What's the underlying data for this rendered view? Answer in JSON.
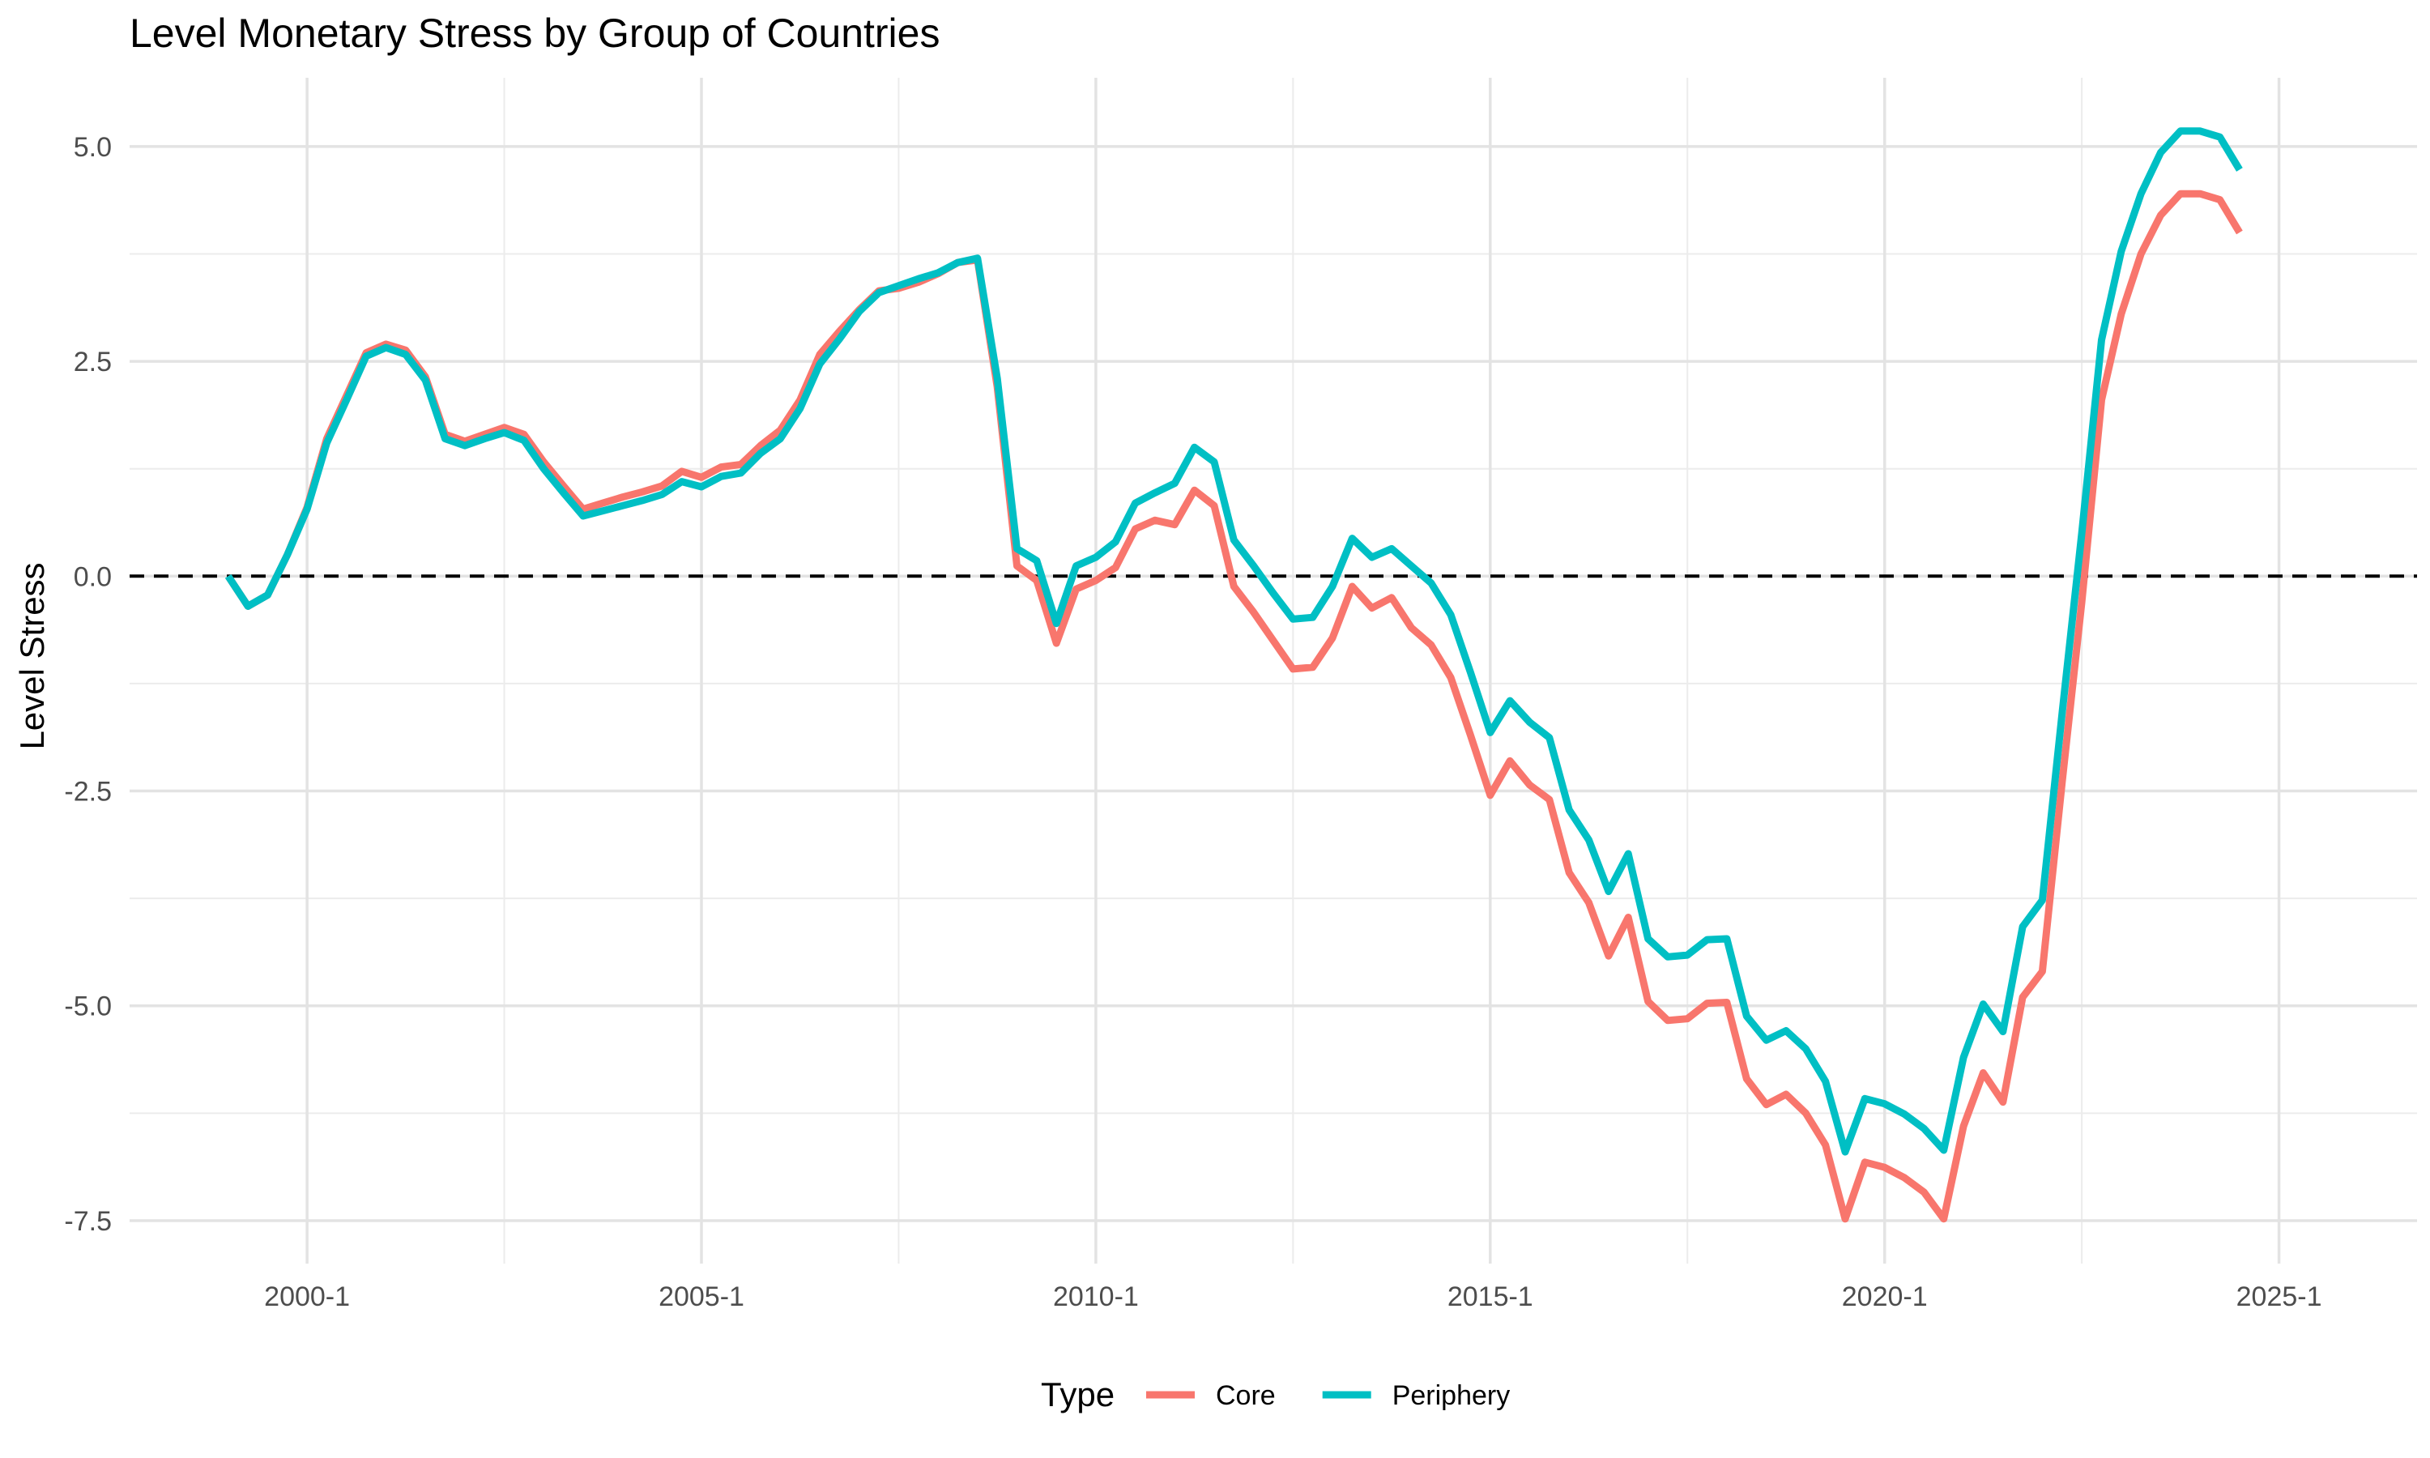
{
  "chart_data": {
    "type": "line",
    "title": "Level Monetary Stress by Group of Countries",
    "xlabel": "",
    "ylabel": "Level Stress",
    "xlim": [
      1997.75,
      2026.75
    ],
    "ylim": [
      -8.0,
      5.8
    ],
    "x_ticks": [
      {
        "value": 2000,
        "label": "2000-1"
      },
      {
        "value": 2005,
        "label": "2005-1"
      },
      {
        "value": 2010,
        "label": "2010-1"
      },
      {
        "value": 2015,
        "label": "2015-1"
      },
      {
        "value": 2020,
        "label": "2020-1"
      },
      {
        "value": 2025,
        "label": "2025-1"
      }
    ],
    "x_minor_ticks": [
      2002.5,
      2007.5,
      2012.5,
      2017.5,
      2022.5
    ],
    "y_ticks": [
      {
        "value": 5.0,
        "label": "5.0"
      },
      {
        "value": 2.5,
        "label": "2.5"
      },
      {
        "value": 0.0,
        "label": "0.0"
      },
      {
        "value": -2.5,
        "label": "-2.5"
      },
      {
        "value": -5.0,
        "label": "-5.0"
      },
      {
        "value": -7.5,
        "label": "-7.5"
      }
    ],
    "y_minor_ticks": [
      3.75,
      1.25,
      -1.25,
      -3.75,
      -6.25
    ],
    "reference_line": {
      "y": 0,
      "style": "dashed"
    },
    "grid": true,
    "legend": {
      "title": "Type",
      "position": "bottom"
    },
    "series": [
      {
        "name": "Core",
        "color": "#F8766D",
        "points": [
          [
            1999.0,
            0.0
          ],
          [
            1999.25,
            -0.35
          ],
          [
            1999.5,
            -0.22
          ],
          [
            1999.75,
            0.25
          ],
          [
            2000.0,
            0.8
          ],
          [
            2000.25,
            1.6
          ],
          [
            2000.5,
            2.1
          ],
          [
            2000.75,
            2.6
          ],
          [
            2001.0,
            2.7
          ],
          [
            2001.25,
            2.63
          ],
          [
            2001.5,
            2.32
          ],
          [
            2001.75,
            1.65
          ],
          [
            2002.0,
            1.57
          ],
          [
            2002.25,
            1.65
          ],
          [
            2002.5,
            1.73
          ],
          [
            2002.75,
            1.65
          ],
          [
            2003.0,
            1.33
          ],
          [
            2003.25,
            1.05
          ],
          [
            2003.5,
            0.78
          ],
          [
            2003.75,
            0.85
          ],
          [
            2004.0,
            0.92
          ],
          [
            2004.25,
            0.98
          ],
          [
            2004.5,
            1.05
          ],
          [
            2004.75,
            1.22
          ],
          [
            2005.0,
            1.15
          ],
          [
            2005.25,
            1.27
          ],
          [
            2005.5,
            1.3
          ],
          [
            2005.75,
            1.52
          ],
          [
            2006.0,
            1.7
          ],
          [
            2006.25,
            2.05
          ],
          [
            2006.5,
            2.58
          ],
          [
            2006.75,
            2.85
          ],
          [
            2007.0,
            3.1
          ],
          [
            2007.25,
            3.32
          ],
          [
            2007.5,
            3.35
          ],
          [
            2007.75,
            3.42
          ],
          [
            2008.0,
            3.52
          ],
          [
            2008.25,
            3.65
          ],
          [
            2008.5,
            3.68
          ],
          [
            2008.75,
            2.2
          ],
          [
            2009.0,
            0.12
          ],
          [
            2009.25,
            -0.05
          ],
          [
            2009.5,
            -0.78
          ],
          [
            2009.75,
            -0.15
          ],
          [
            2010.0,
            -0.05
          ],
          [
            2010.25,
            0.1
          ],
          [
            2010.5,
            0.55
          ],
          [
            2010.75,
            0.65
          ],
          [
            2011.0,
            0.6
          ],
          [
            2011.25,
            1.0
          ],
          [
            2011.5,
            0.82
          ],
          [
            2011.75,
            -0.12
          ],
          [
            2012.0,
            -0.42
          ],
          [
            2012.25,
            -0.75
          ],
          [
            2012.5,
            -1.08
          ],
          [
            2012.75,
            -1.06
          ],
          [
            2013.0,
            -0.72
          ],
          [
            2013.25,
            -0.12
          ],
          [
            2013.5,
            -0.37
          ],
          [
            2013.75,
            -0.25
          ],
          [
            2014.0,
            -0.6
          ],
          [
            2014.25,
            -0.8
          ],
          [
            2014.5,
            -1.18
          ],
          [
            2014.75,
            -1.85
          ],
          [
            2015.0,
            -2.55
          ],
          [
            2015.25,
            -2.15
          ],
          [
            2015.5,
            -2.43
          ],
          [
            2015.75,
            -2.6
          ],
          [
            2016.0,
            -3.45
          ],
          [
            2016.25,
            -3.8
          ],
          [
            2016.5,
            -4.42
          ],
          [
            2016.75,
            -3.97
          ],
          [
            2017.0,
            -4.95
          ],
          [
            2017.25,
            -5.17
          ],
          [
            2017.5,
            -5.15
          ],
          [
            2017.75,
            -4.97
          ],
          [
            2018.0,
            -4.96
          ],
          [
            2018.25,
            -5.85
          ],
          [
            2018.5,
            -6.15
          ],
          [
            2018.75,
            -6.03
          ],
          [
            2019.0,
            -6.25
          ],
          [
            2019.25,
            -6.62
          ],
          [
            2019.5,
            -7.48
          ],
          [
            2019.75,
            -6.82
          ],
          [
            2020.0,
            -6.88
          ],
          [
            2020.25,
            -7.0
          ],
          [
            2020.5,
            -7.17
          ],
          [
            2020.75,
            -7.48
          ],
          [
            2021.0,
            -6.4
          ],
          [
            2021.25,
            -5.78
          ],
          [
            2021.5,
            -6.12
          ],
          [
            2021.75,
            -4.9
          ],
          [
            2022.0,
            -4.6
          ],
          [
            2022.25,
            -2.4
          ],
          [
            2022.5,
            -0.3
          ],
          [
            2022.75,
            2.05
          ],
          [
            2023.0,
            3.05
          ],
          [
            2023.25,
            3.75
          ],
          [
            2023.5,
            4.2
          ],
          [
            2023.75,
            4.45
          ],
          [
            2024.0,
            4.45
          ],
          [
            2024.25,
            4.38
          ],
          [
            2024.5,
            4.0
          ]
        ]
      },
      {
        "name": "Periphery",
        "color": "#00BFC4",
        "points": [
          [
            1999.0,
            0.0
          ],
          [
            1999.25,
            -0.35
          ],
          [
            1999.5,
            -0.22
          ],
          [
            1999.75,
            0.25
          ],
          [
            2000.0,
            0.78
          ],
          [
            2000.25,
            1.55
          ],
          [
            2000.5,
            2.05
          ],
          [
            2000.75,
            2.56
          ],
          [
            2001.0,
            2.66
          ],
          [
            2001.25,
            2.58
          ],
          [
            2001.5,
            2.28
          ],
          [
            2001.75,
            1.6
          ],
          [
            2002.0,
            1.52
          ],
          [
            2002.25,
            1.6
          ],
          [
            2002.5,
            1.67
          ],
          [
            2002.75,
            1.58
          ],
          [
            2003.0,
            1.25
          ],
          [
            2003.25,
            0.97
          ],
          [
            2003.5,
            0.7
          ],
          [
            2003.75,
            0.76
          ],
          [
            2004.0,
            0.82
          ],
          [
            2004.25,
            0.88
          ],
          [
            2004.5,
            0.95
          ],
          [
            2004.75,
            1.1
          ],
          [
            2005.0,
            1.04
          ],
          [
            2005.25,
            1.16
          ],
          [
            2005.5,
            1.2
          ],
          [
            2005.75,
            1.43
          ],
          [
            2006.0,
            1.6
          ],
          [
            2006.25,
            1.95
          ],
          [
            2006.5,
            2.47
          ],
          [
            2006.75,
            2.76
          ],
          [
            2007.0,
            3.08
          ],
          [
            2007.25,
            3.3
          ],
          [
            2007.5,
            3.38
          ],
          [
            2007.75,
            3.46
          ],
          [
            2008.0,
            3.53
          ],
          [
            2008.25,
            3.65
          ],
          [
            2008.5,
            3.7
          ],
          [
            2008.75,
            2.3
          ],
          [
            2009.0,
            0.32
          ],
          [
            2009.25,
            0.18
          ],
          [
            2009.5,
            -0.55
          ],
          [
            2009.75,
            0.12
          ],
          [
            2010.0,
            0.22
          ],
          [
            2010.25,
            0.4
          ],
          [
            2010.5,
            0.85
          ],
          [
            2010.75,
            0.97
          ],
          [
            2011.0,
            1.08
          ],
          [
            2011.25,
            1.5
          ],
          [
            2011.5,
            1.33
          ],
          [
            2011.75,
            0.42
          ],
          [
            2012.0,
            0.12
          ],
          [
            2012.25,
            -0.2
          ],
          [
            2012.5,
            -0.5
          ],
          [
            2012.75,
            -0.48
          ],
          [
            2013.0,
            -0.12
          ],
          [
            2013.25,
            0.44
          ],
          [
            2013.5,
            0.22
          ],
          [
            2013.75,
            0.32
          ],
          [
            2014.0,
            0.12
          ],
          [
            2014.25,
            -0.08
          ],
          [
            2014.5,
            -0.45
          ],
          [
            2014.75,
            -1.12
          ],
          [
            2015.0,
            -1.82
          ],
          [
            2015.25,
            -1.45
          ],
          [
            2015.5,
            -1.7
          ],
          [
            2015.75,
            -1.88
          ],
          [
            2016.0,
            -2.72
          ],
          [
            2016.25,
            -3.07
          ],
          [
            2016.5,
            -3.67
          ],
          [
            2016.75,
            -3.23
          ],
          [
            2017.0,
            -4.22
          ],
          [
            2017.25,
            -4.43
          ],
          [
            2017.5,
            -4.41
          ],
          [
            2017.75,
            -4.23
          ],
          [
            2018.0,
            -4.22
          ],
          [
            2018.25,
            -5.12
          ],
          [
            2018.5,
            -5.4
          ],
          [
            2018.75,
            -5.29
          ],
          [
            2019.0,
            -5.5
          ],
          [
            2019.25,
            -5.88
          ],
          [
            2019.5,
            -6.7
          ],
          [
            2019.75,
            -6.08
          ],
          [
            2020.0,
            -6.14
          ],
          [
            2020.25,
            -6.26
          ],
          [
            2020.5,
            -6.43
          ],
          [
            2020.75,
            -6.68
          ],
          [
            2021.0,
            -5.6
          ],
          [
            2021.25,
            -4.98
          ],
          [
            2021.5,
            -5.3
          ],
          [
            2021.75,
            -4.08
          ],
          [
            2022.0,
            -3.77
          ],
          [
            2022.25,
            -1.6
          ],
          [
            2022.5,
            0.5
          ],
          [
            2022.75,
            2.75
          ],
          [
            2023.0,
            3.78
          ],
          [
            2023.25,
            4.45
          ],
          [
            2023.5,
            4.93
          ],
          [
            2023.75,
            5.18
          ],
          [
            2024.0,
            5.18
          ],
          [
            2024.25,
            5.11
          ],
          [
            2024.5,
            4.73
          ]
        ]
      }
    ]
  }
}
